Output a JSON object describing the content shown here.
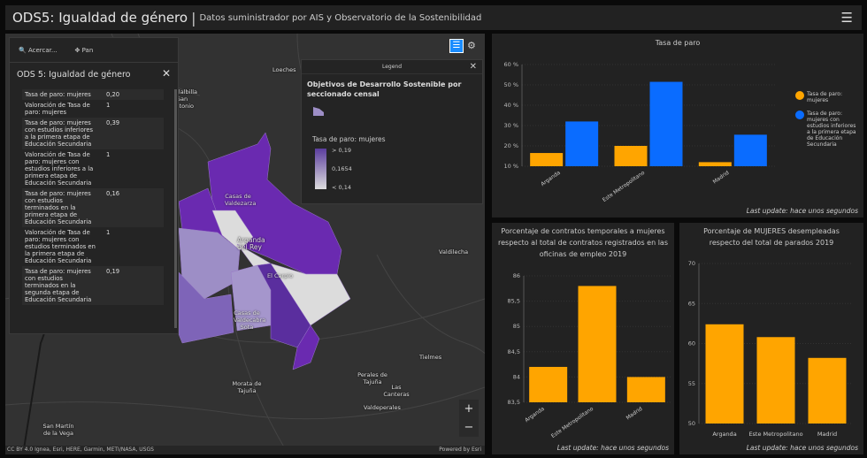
{
  "header": {
    "title": "ODS5: Igualdad de género",
    "separator": "|",
    "subtitle": "Datos suministrador por AIS y Observatorio de la Sostenibilidad",
    "menu_icon": "hamburger-icon"
  },
  "map": {
    "labels": [
      "Loeches",
      "Villalbilla San Antonio",
      "Casas de Valdezarza",
      "Arganda del Rey",
      "El Carpio",
      "Casas de Valdecabra Sota",
      "Valdilecha",
      "Tielmes",
      "Perales de Tajuña",
      "Las Canteras",
      "Valdeperales",
      "Morata de Tajuña",
      "San Martín de la Vega"
    ],
    "attribution": "CC BY 4.0 Ignea, Esri, HERE, Garmin, METI/NASA, USGS",
    "powered_by": "Powered by Esri",
    "zoom_in": "+",
    "zoom_out": "−"
  },
  "popup": {
    "tools": [
      "Acercar...",
      "Pan"
    ],
    "title": "ODS 5: Igualdad de género",
    "rows": [
      {
        "k": "Tasa de paro: mujeres",
        "v": "0,20"
      },
      {
        "k": "Valoración de Tasa de paro: mujeres",
        "v": "1"
      },
      {
        "k": "Tasa de paro: mujeres con estudios inferiores a la primera etapa de Educación Secundaria",
        "v": "0,39"
      },
      {
        "k": "Valoración de Tasa de paro: mujeres con estudios inferiores a la primera etapa de Educación Secundaria",
        "v": "1"
      },
      {
        "k": "Tasa de paro: mujeres con estudios terminados en la primera etapa de Educación Secundaria",
        "v": "0,16"
      },
      {
        "k": "Valoración de Tasa de paro: mujeres con estudios terminados en la primera etapa de Educación Secundaria",
        "v": "1"
      },
      {
        "k": "Tasa de paro: mujeres con estudios terminados en la segunda etapa de Educación Secundaria",
        "v": "0,19"
      }
    ]
  },
  "legend": {
    "header": "Legend",
    "title": "Objetivos de Desarrollo Sostenible por seccionado censal",
    "field": "Tasa de paro: mujeres",
    "stops": [
      "> 0,19",
      "0,1654",
      "< 0,14"
    ],
    "colors": {
      "high": "#5b3d9e",
      "low": "#dddddd"
    }
  },
  "chart_data": [
    {
      "type": "bar",
      "title": "Tasa de paro",
      "categories": [
        "Arganda",
        "Este Metropolitano",
        "Madrid"
      ],
      "series": [
        {
          "name": "Tasa de paro: mujeres",
          "color": "#ffa500",
          "values": [
            16.5,
            20,
            12
          ]
        },
        {
          "name": "Tasa de paro: mujeres con estudios inferiores a la primera etapa de Educación Secundaria",
          "color": "#0a6cff",
          "values": [
            32,
            51.5,
            25.5
          ]
        }
      ],
      "ylim": [
        10,
        60
      ],
      "yticks": [
        "10 %",
        "20 %",
        "30 %",
        "40 %",
        "50 %",
        "60 %"
      ],
      "legend": "right",
      "update": "Last update: hace unos segundos"
    },
    {
      "type": "bar",
      "title": "Porcentaje de contratos temporales a mujeres respecto al total de contratos registrados en las oficinas de empleo 2019",
      "categories": [
        "Arganda",
        "Este Metropolitano",
        "Madrid"
      ],
      "series": [
        {
          "color": "#ffa500",
          "values": [
            84.2,
            85.8,
            84.0
          ]
        }
      ],
      "ylim": [
        83.5,
        86
      ],
      "yticks": [
        "83,5",
        "84",
        "84,5",
        "85",
        "85,5",
        "86"
      ],
      "update": "Last update: hace unos segundos"
    },
    {
      "type": "bar",
      "title": "Porcentaje de MUJERES desempleadas respecto del total de parados 2019",
      "categories": [
        "Arganda",
        "Este Metropolitano",
        "Madrid"
      ],
      "series": [
        {
          "color": "#ffa500",
          "values": [
            62.4,
            60.8,
            58.2
          ]
        }
      ],
      "ylim": [
        50,
        70
      ],
      "yticks": [
        "50",
        "55",
        "60",
        "65",
        "70"
      ],
      "update": "Last update: hace unos segundos"
    }
  ]
}
